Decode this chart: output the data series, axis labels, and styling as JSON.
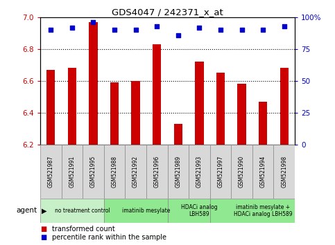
{
  "title": "GDS4047 / 242371_x_at",
  "samples": [
    "GSM521987",
    "GSM521991",
    "GSM521995",
    "GSM521988",
    "GSM521992",
    "GSM521996",
    "GSM521989",
    "GSM521993",
    "GSM521997",
    "GSM521990",
    "GSM521994",
    "GSM521998"
  ],
  "bar_values": [
    6.67,
    6.68,
    6.97,
    6.59,
    6.6,
    6.83,
    6.33,
    6.72,
    6.65,
    6.58,
    6.47,
    6.68
  ],
  "percentile_values": [
    90,
    92,
    96,
    90,
    90,
    93,
    86,
    92,
    90,
    90,
    90,
    93
  ],
  "ylim_left": [
    6.2,
    7.0
  ],
  "ylim_right": [
    0,
    100
  ],
  "yticks_left": [
    6.2,
    6.4,
    6.6,
    6.8,
    7.0
  ],
  "yticks_right": [
    0,
    25,
    50,
    75,
    100
  ],
  "bar_color": "#cc0000",
  "dot_color": "#0000cc",
  "grid_lines": [
    6.4,
    6.6,
    6.8
  ],
  "agent_groups": [
    {
      "label": "no treatment control",
      "start": 0,
      "end": 3,
      "color": "#c8f0c8"
    },
    {
      "label": "imatinib mesylate",
      "start": 3,
      "end": 6,
      "color": "#90e890"
    },
    {
      "label": "HDACi analog\nLBH589",
      "start": 6,
      "end": 8,
      "color": "#90e890"
    },
    {
      "label": "imatinib mesylate +\nHDACi analog LBH589",
      "start": 8,
      "end": 12,
      "color": "#90e890"
    }
  ],
  "sample_box_color": "#d8d8d8",
  "left_axis_color": "#cc0000",
  "right_axis_color": "#0000cc",
  "bar_width": 0.4
}
